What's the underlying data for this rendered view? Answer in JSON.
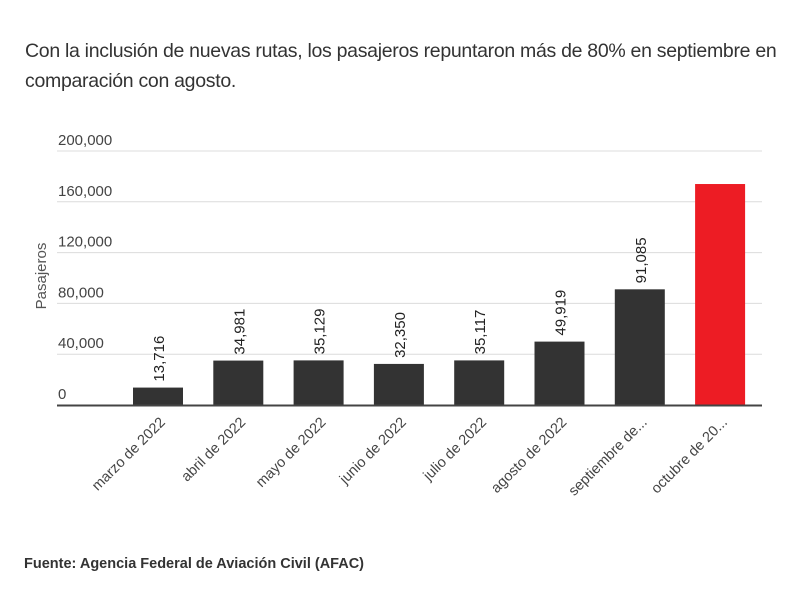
{
  "title": "Con la inclusión de nuevas rutas, los pasajeros repuntaron más de 80% en septiembre en comparación con agosto.",
  "source": "Fuente: Agencia Federal de Aviación Civil (AFAC)",
  "chart_data": {
    "type": "bar",
    "title": "Con la inclusión de nuevas rutas, los pasajeros repuntaron más de 80% en septiembre en comparación con agosto.",
    "xlabel": "",
    "ylabel": "Pasajeros",
    "ylim": [
      0,
      200000
    ],
    "yticks": [
      0,
      40000,
      80000,
      120000,
      160000,
      200000
    ],
    "ytick_labels": [
      "0",
      "40,000",
      "80,000",
      "120,000",
      "160,000",
      "200,000"
    ],
    "grid": true,
    "categories": [
      "marzo de 2022",
      "abril de 2022",
      "mayo de 2022",
      "junio de 2022",
      "julio de 2022",
      "agosto de 2022",
      "septiembre de...",
      "octubre de 20..."
    ],
    "values": [
      13716,
      34981,
      35129,
      32350,
      35117,
      49919,
      91085,
      174000
    ],
    "data_labels": [
      "13,716",
      "34,981",
      "35,129",
      "32,350",
      "35,117",
      "49,919",
      "91,085",
      ""
    ],
    "colors": [
      "#333333",
      "#333333",
      "#333333",
      "#333333",
      "#333333",
      "#333333",
      "#333333",
      "#ED1C24"
    ],
    "highlight_color": "#ED1C24",
    "bar_color": "#333333",
    "source": "Fuente: Agencia Federal de Aviación Civil (AFAC)"
  }
}
